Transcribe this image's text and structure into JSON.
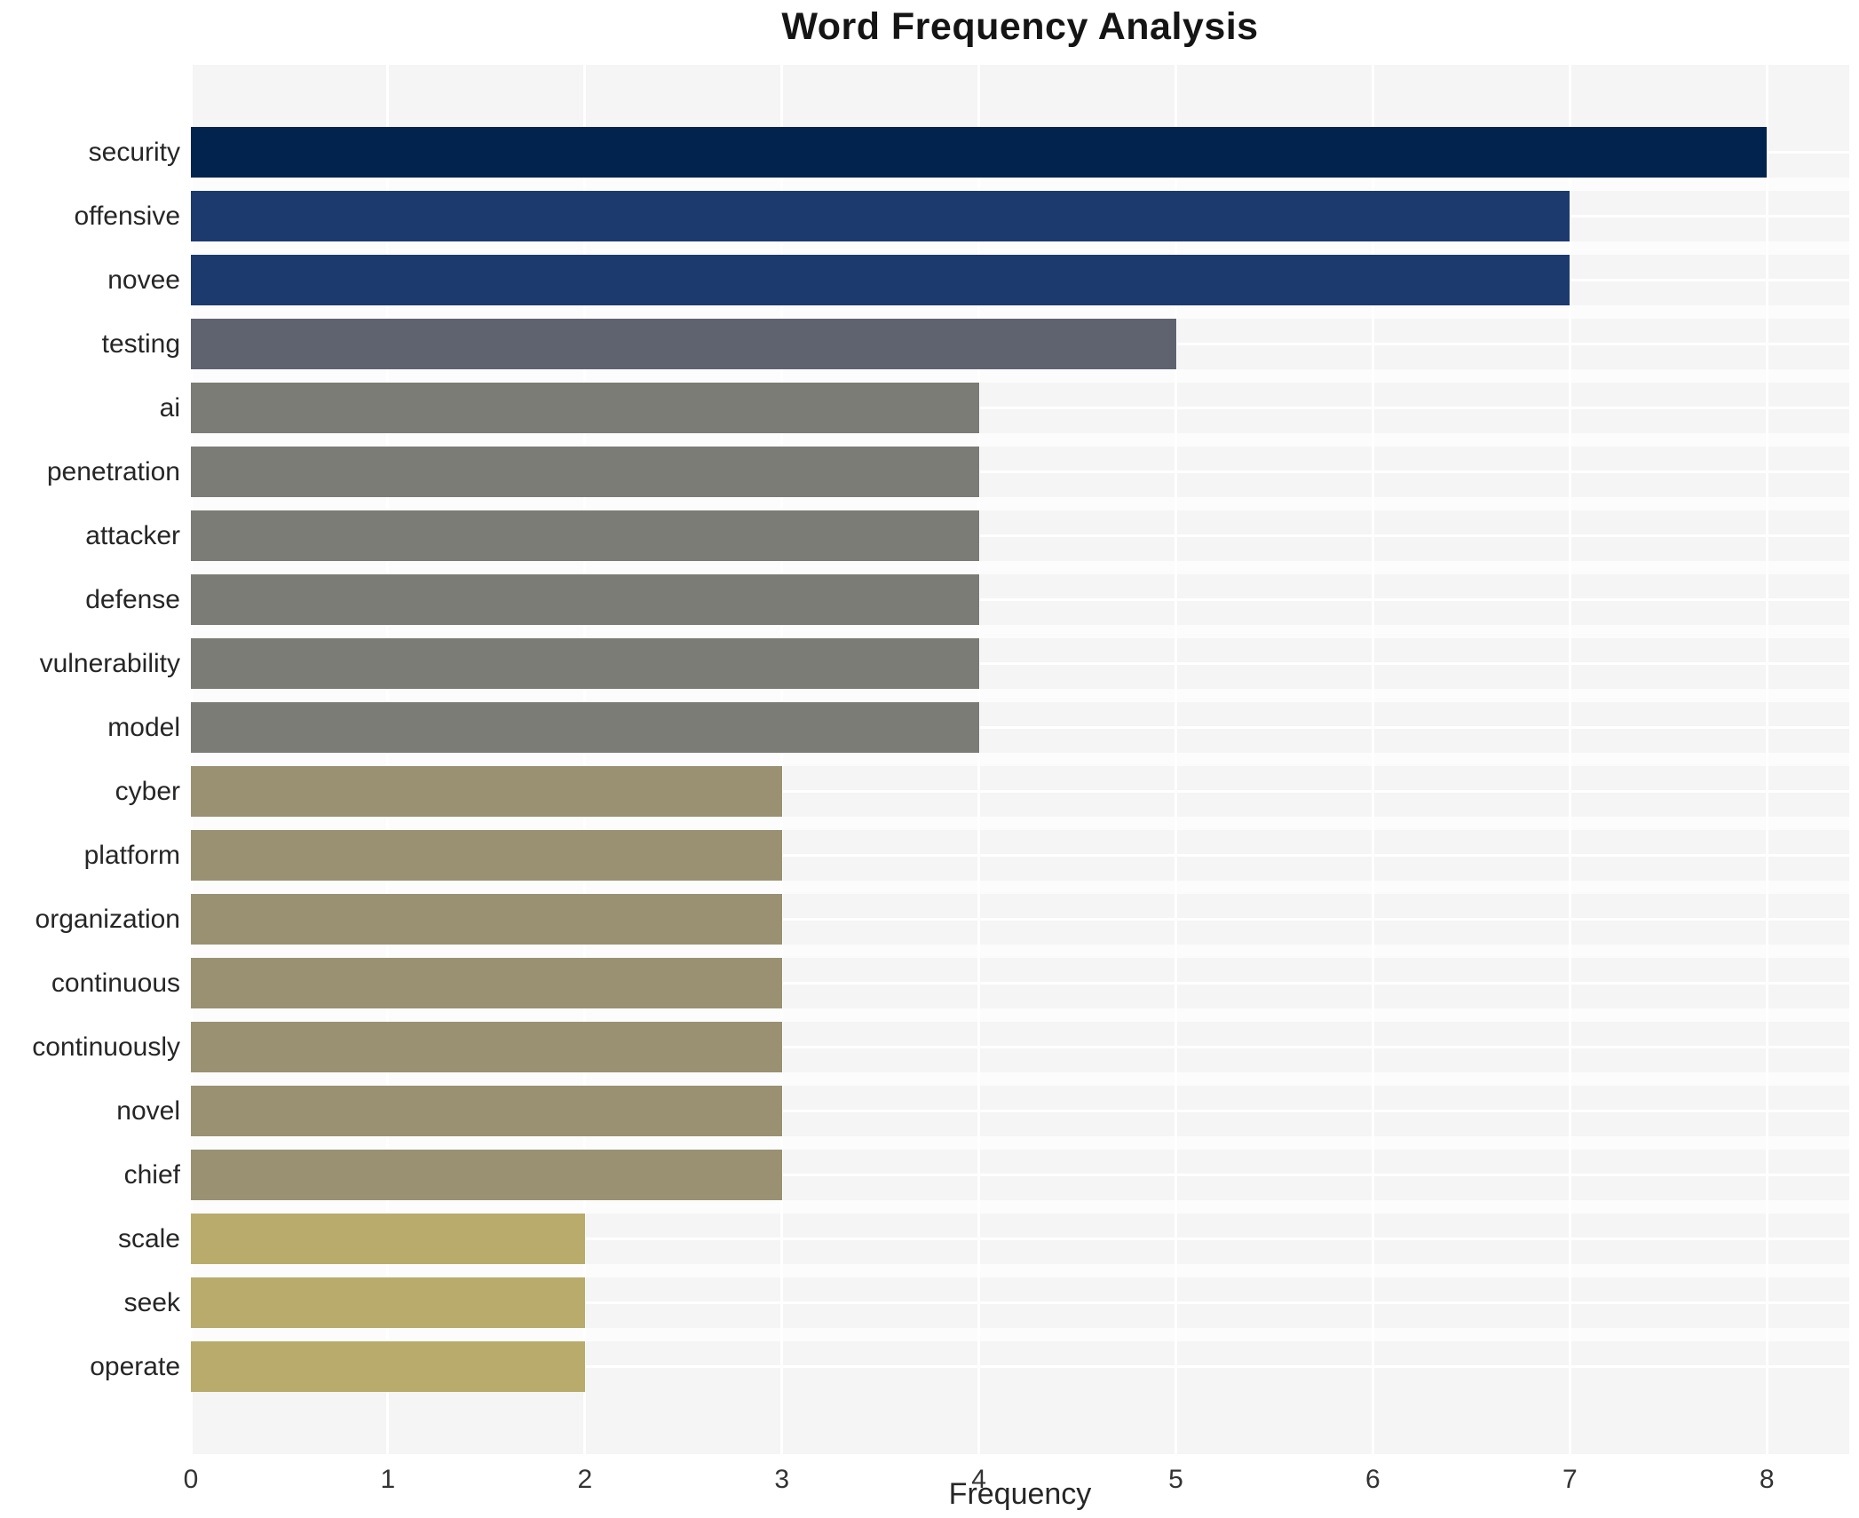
{
  "chart_data": {
    "type": "bar",
    "orientation": "horizontal",
    "title": "Word Frequency Analysis",
    "xlabel": "Frequency",
    "ylabel": "",
    "categories": [
      "security",
      "offensive",
      "novee",
      "testing",
      "ai",
      "penetration",
      "attacker",
      "defense",
      "vulnerability",
      "model",
      "cyber",
      "platform",
      "organization",
      "continuous",
      "continuously",
      "novel",
      "chief",
      "scale",
      "seek",
      "operate"
    ],
    "values": [
      8,
      7,
      7,
      5,
      4,
      4,
      4,
      4,
      4,
      4,
      3,
      3,
      3,
      3,
      3,
      3,
      3,
      2,
      2,
      2
    ],
    "bar_colors": [
      "#02234d",
      "#1d3a6e",
      "#1d3a6e",
      "#5f6370",
      "#7c7c77",
      "#7c7c77",
      "#7c7c77",
      "#7c7c77",
      "#7c7c77",
      "#7c7c77",
      "#9a9173",
      "#9a9173",
      "#9a9173",
      "#9a9173",
      "#9a9173",
      "#9a9173",
      "#9a9173",
      "#b9ab6c",
      "#b9ab6c",
      "#b9ab6c"
    ],
    "xticks": [
      0,
      1,
      2,
      3,
      4,
      5,
      6,
      7,
      8
    ],
    "xlim": [
      0,
      8.42
    ],
    "grid": true,
    "legend": "none",
    "plot_background": "#f5f5f6",
    "gridline_color": "#ffffff",
    "figure_background": "#ffffff"
  }
}
